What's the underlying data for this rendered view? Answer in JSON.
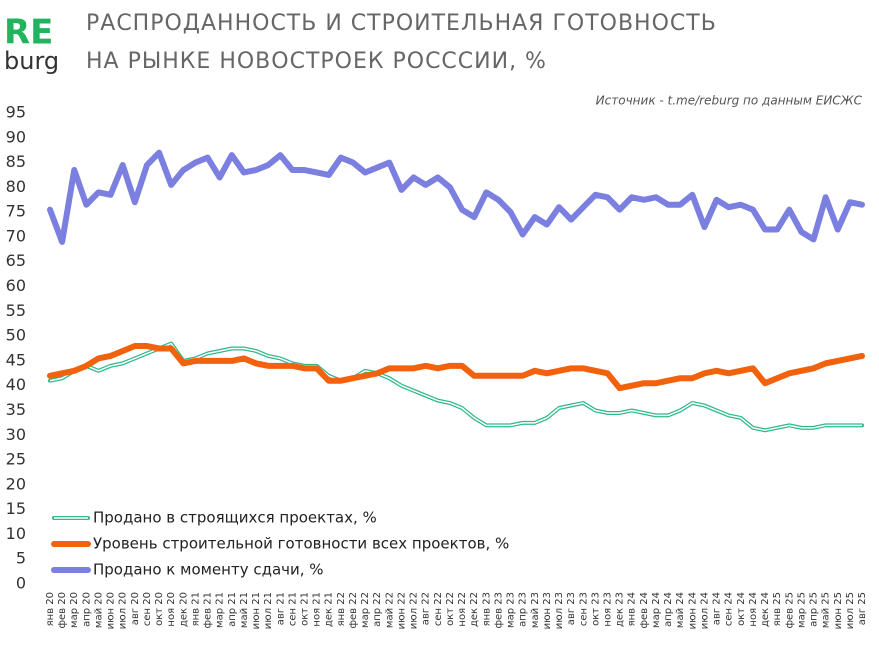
{
  "logo": {
    "top": "RE",
    "bottom": "burg"
  },
  "chart_data": {
    "type": "line",
    "title": [
      "РАСПРОДАННОСТЬ И СТРОИТЕЛЬНАЯ ГОТОВНОСТЬ",
      "НА РЫНКЕ НОВОСТРОЕК РОСССИИ, %"
    ],
    "source": "Источник - t.me/reburg по данным ЕИСЖС",
    "categories": [
      "янв 20",
      "фев 20",
      "мар 20",
      "апр 20",
      "май 20",
      "июн 20",
      "июл 20",
      "авг 20",
      "сен 20",
      "окт 20",
      "ноя 20",
      "дек 20",
      "янв 21",
      "фев 21",
      "мар 21",
      "апр 21",
      "май 21",
      "июн 21",
      "июл 21",
      "авг 21",
      "сен 21",
      "окт 21",
      "ноя 21",
      "дек 21",
      "янв 22",
      "фев 22",
      "мар 22",
      "апр 22",
      "май 22",
      "июн 22",
      "июл 22",
      "авг 22",
      "сен 22",
      "окт 22",
      "ноя 22",
      "дек 22",
      "янв 23",
      "фев 23",
      "мар 23",
      "апр 23",
      "май 23",
      "июн 23",
      "июл 23",
      "авг 23",
      "сен 23",
      "окт 23",
      "ноя 23",
      "дек 23",
      "янв 24",
      "фев 24",
      "мар 24",
      "апр 24",
      "май 24",
      "июн 24",
      "июл 24",
      "авг 24",
      "сен 24",
      "окт 24",
      "ноя 24",
      "дек 24",
      "янв 25",
      "фев 25",
      "мар 25",
      "апр 25",
      "май 25",
      "июн 25",
      "июл 25",
      "авг 25"
    ],
    "series": [
      {
        "name": "Продано в строящихся проектах, %",
        "color": "#2fb88a",
        "line_style": "double",
        "values": [
          41,
          41.5,
          43,
          44,
          43,
          44,
          44.5,
          45.5,
          46.5,
          47.5,
          48.5,
          45,
          45.5,
          46.5,
          47,
          47.5,
          47.5,
          47,
          46,
          45.5,
          44.5,
          44,
          44,
          42,
          41,
          41.5,
          43,
          42.5,
          41.5,
          40,
          39,
          38,
          37,
          36.5,
          35.5,
          33.5,
          32,
          32,
          32,
          32.5,
          32.5,
          33.5,
          35.5,
          36,
          36.5,
          35,
          34.5,
          34.5,
          35,
          34.5,
          34,
          34,
          35,
          36.5,
          36,
          35,
          34,
          33.5,
          31.5,
          31,
          31.5,
          32,
          31.5,
          31.5,
          32,
          32,
          32,
          32
        ]
      },
      {
        "name": "Уровень строительной готовности всех проектов, %",
        "color": "#f2610c",
        "line_style": "solid",
        "values": [
          42,
          42.5,
          43,
          44,
          45.5,
          46,
          47,
          48,
          48,
          47.5,
          47.5,
          44.5,
          45,
          45,
          45,
          45,
          45.5,
          44.5,
          44,
          44,
          44,
          43.5,
          43.5,
          41,
          41,
          41.5,
          42,
          42.5,
          43.5,
          43.5,
          43.5,
          44,
          43.5,
          44,
          44,
          42,
          42,
          42,
          42,
          42,
          43,
          42.5,
          43,
          43.5,
          43.5,
          43,
          42.5,
          39.5,
          40,
          40.5,
          40.5,
          41,
          41.5,
          41.5,
          42.5,
          43,
          42.5,
          43,
          43.5,
          40.5,
          41.5,
          42.5,
          43,
          43.5,
          44.5,
          45,
          45.5,
          46
        ]
      },
      {
        "name": "Продано  к моменту сдачи, %",
        "color": "#7b7fe0",
        "line_style": "solid",
        "values": [
          75.5,
          69,
          83.5,
          76.5,
          79,
          78.5,
          84.5,
          77,
          84.5,
          87,
          80.5,
          83.5,
          85,
          86,
          82,
          86.5,
          83,
          83.5,
          84.5,
          86.5,
          83.5,
          83.5,
          83,
          82.5,
          86,
          85,
          83,
          84,
          85,
          79.5,
          82,
          80.5,
          82,
          80,
          75.5,
          74,
          79,
          77.5,
          75,
          70.5,
          74,
          72.5,
          76,
          73.5,
          76,
          78.5,
          78,
          75.5,
          78,
          77.5,
          78,
          76.5,
          76.5,
          78.5,
          72,
          77.5,
          76,
          76.5,
          75.5,
          71.5,
          71.5,
          75.5,
          71,
          69.5,
          78,
          71.5,
          77,
          76.5
        ]
      }
    ],
    "ylim": [
      0,
      95
    ],
    "yticks": [
      0,
      5,
      10,
      15,
      20,
      25,
      30,
      35,
      40,
      45,
      50,
      55,
      60,
      65,
      70,
      75,
      80,
      85,
      90,
      95
    ],
    "grid": false,
    "legend": "lower left"
  }
}
